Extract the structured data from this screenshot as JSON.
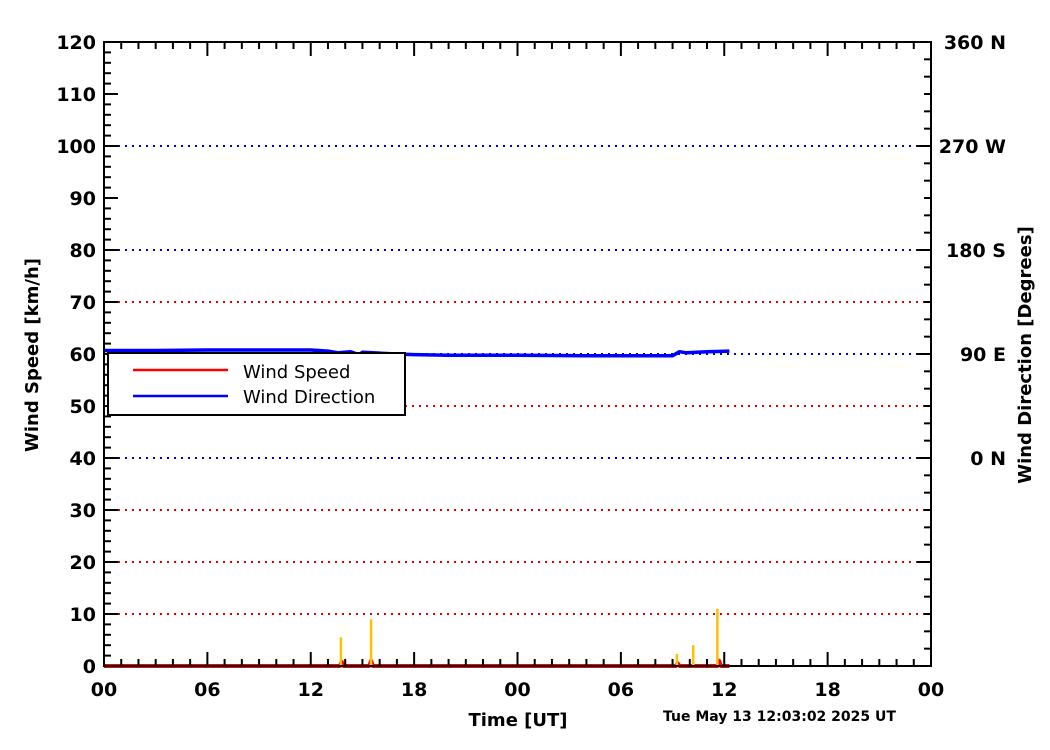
{
  "chart_data": {
    "type": "line",
    "xlabel": "Time [UT]",
    "ylabel": "Wind Speed [km/h]",
    "y2label": "Wind Direction [Degrees]",
    "timestamp": "Tue May 13 12:03:02 2025 UT",
    "x_unit": "hours",
    "xlim": [
      0,
      48
    ],
    "x_ticks": [
      {
        "value": 0,
        "label": "00"
      },
      {
        "value": 6,
        "label": "06"
      },
      {
        "value": 12,
        "label": "12"
      },
      {
        "value": 18,
        "label": "18"
      },
      {
        "value": 24,
        "label": "00"
      },
      {
        "value": 30,
        "label": "06"
      },
      {
        "value": 36,
        "label": "12"
      },
      {
        "value": 42,
        "label": "18"
      },
      {
        "value": 48,
        "label": "00"
      }
    ],
    "ylim": [
      0,
      120
    ],
    "y_ticks": [
      0,
      10,
      20,
      30,
      40,
      50,
      60,
      70,
      80,
      90,
      100,
      110,
      120
    ],
    "y2lim": [
      -180,
      360
    ],
    "y2_ticks": [
      {
        "value": 0,
        "label": "0 N"
      },
      {
        "value": 90,
        "label": "90 E"
      },
      {
        "value": 180,
        "label": "180 S"
      },
      {
        "value": 270,
        "label": "270 W"
      },
      {
        "value": 360,
        "label": "360 N"
      }
    ],
    "red_grid_y": [
      10,
      20,
      30,
      40,
      50,
      70,
      80
    ],
    "blue_grid_dir": [
      0,
      90,
      180,
      270
    ],
    "colors": {
      "speed": "#ff0000",
      "direction": "#0000ff",
      "gust": "#ffc000",
      "speed_grid": "#e00000",
      "direction_grid": "#0000cc"
    },
    "legend": {
      "placement": "middle-left",
      "entries": [
        {
          "name": "Wind Speed",
          "color": "#ff0000"
        },
        {
          "name": "Wind Direction",
          "color": "#0000ff"
        }
      ]
    },
    "series": [
      {
        "name": "Wind Speed",
        "axis": "left",
        "color": "#ff0000",
        "x": [
          0,
          13.7,
          13.8,
          13.9,
          15.4,
          15.5,
          15.6,
          33.2,
          33.3,
          33.4,
          35.6,
          35.7,
          35.8,
          36.3
        ],
        "y": [
          0,
          0,
          0.8,
          0,
          0,
          1.0,
          0,
          0,
          0.5,
          0,
          0,
          1.0,
          0,
          0
        ]
      },
      {
        "name": "Wind Direction",
        "axis": "right",
        "color": "#0000ff",
        "x": [
          0,
          3,
          6,
          9,
          12,
          13,
          13.6,
          14.3,
          14.8,
          15.0,
          15.6,
          17,
          18,
          20,
          24,
          28,
          30,
          33,
          33.4,
          33.8,
          35,
          36.3
        ],
        "y": [
          93,
          93,
          93.5,
          93.5,
          93.5,
          92.5,
          91,
          92,
          89.5,
          91.5,
          91,
          90,
          89.5,
          89,
          89,
          88.5,
          88.5,
          88.5,
          92,
          91,
          92,
          92.5
        ]
      },
      {
        "name": "gust",
        "axis": "left",
        "color": "#ffc000",
        "type": "spikes",
        "x": [
          13.75,
          15.5,
          33.25,
          34.2,
          35.6
        ],
        "y": [
          5.5,
          9.0,
          2.3,
          4.0,
          11.0
        ]
      }
    ]
  }
}
